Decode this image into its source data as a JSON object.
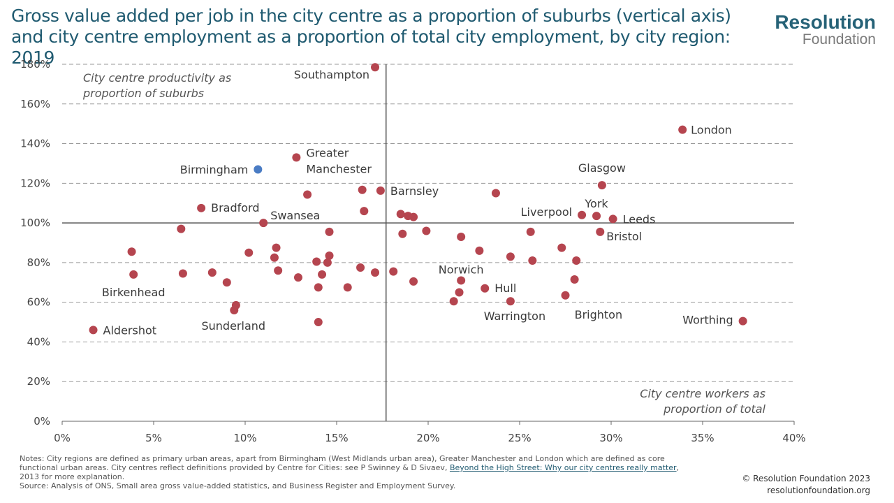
{
  "title": "Gross value added per job in the city centre as a proportion of suburbs (vertical axis) and city centre employment as a proportion of total city employment, by city region: 2019",
  "logo": {
    "line1": "Resolution",
    "line2": "Foundation"
  },
  "notes": {
    "line1_a": "Notes: City regions are defined as primary urban areas, apart from Birmingham (West Midlands urban area), Greater Manchester and London which are defined as core functional urban areas. City centres reflect definitions provided by Centre for Cities: see P Swinney & D Sivaev, ",
    "link": "Beyond the High Street: Why our city centres really matter",
    "line1_b": ", 2013 for more explanation.",
    "source": "Source: Analysis of ONS, Small area gross value-added statistics, and Business Register and Employment Survey."
  },
  "copyright": {
    "line1": "© Resolution Foundation 2023",
    "line2": "resolutionfoundation.org"
  },
  "colors": {
    "point": "#b5454f",
    "highlight": "#4a7cc4",
    "grid": "#9a9a9a",
    "axis": "#666666",
    "title": "#1f5a70"
  },
  "chart_data": {
    "type": "scatter",
    "xlim": [
      0,
      40
    ],
    "ylim": [
      0,
      180
    ],
    "x_ticks": [
      0,
      5,
      10,
      15,
      20,
      25,
      30,
      35,
      40
    ],
    "y_ticks": [
      0,
      20,
      40,
      60,
      80,
      100,
      120,
      140,
      160,
      180
    ],
    "x_tick_labels": [
      "0%",
      "5%",
      "10%",
      "15%",
      "20%",
      "25%",
      "30%",
      "35%",
      "40%"
    ],
    "y_tick_labels": [
      "0%",
      "20%",
      "40%",
      "60%",
      "80%",
      "100%",
      "120%",
      "140%",
      "160%",
      "180%"
    ],
    "grid": "horizontal dashed",
    "reference_lines": {
      "x": 17.7,
      "y": 100
    },
    "quadrant_labels": {
      "y_axis": [
        "City centre productivity as",
        "proportion of suburbs"
      ],
      "x_axis": [
        "City centre workers as",
        "proportion of total"
      ]
    },
    "points": [
      {
        "x": 17.1,
        "y": 178.5,
        "label": "Southampton",
        "anchor": "end",
        "dx": -8,
        "dy": 16
      },
      {
        "x": 33.9,
        "y": 147,
        "label": "London",
        "anchor": "start",
        "dx": 12,
        "dy": 6
      },
      {
        "x": 12.8,
        "y": 133,
        "label": "Greater",
        "label2": "Manchester",
        "anchor": "start",
        "dx": 14,
        "dy": -1
      },
      {
        "x": 10.7,
        "y": 127,
        "label": "Birmingham",
        "anchor": "end",
        "dx": -14,
        "dy": 6,
        "highlight": true
      },
      {
        "x": 29.5,
        "y": 119,
        "label": "Glasgow",
        "anchor": "middle",
        "dx": 0,
        "dy": -19
      },
      {
        "x": 16.4,
        "y": 116.7
      },
      {
        "x": 17.4,
        "y": 116.3,
        "label": "Barnsley",
        "anchor": "start",
        "dx": 14,
        "dy": 6
      },
      {
        "x": 13.4,
        "y": 114.3
      },
      {
        "x": 23.7,
        "y": 115
      },
      {
        "x": 7.6,
        "y": 107.5,
        "label": "Bradford",
        "anchor": "start",
        "dx": 14,
        "dy": 5
      },
      {
        "x": 16.5,
        "y": 106
      },
      {
        "x": 18.5,
        "y": 104.5
      },
      {
        "x": 18.9,
        "y": 103.5
      },
      {
        "x": 19.2,
        "y": 103
      },
      {
        "x": 28.4,
        "y": 104,
        "label": "Liverpool",
        "anchor": "end",
        "dx": -14,
        "dy": 1
      },
      {
        "x": 29.2,
        "y": 103.5,
        "label": "York",
        "anchor": "middle",
        "dx": 0,
        "dy": -12
      },
      {
        "x": 30.1,
        "y": 102,
        "label": "Leeds",
        "anchor": "start",
        "dx": 14,
        "dy": 6
      },
      {
        "x": 11.0,
        "y": 100,
        "label": "Swansea",
        "anchor": "start",
        "dx": 10,
        "dy": -5
      },
      {
        "x": 6.5,
        "y": 97
      },
      {
        "x": 14.6,
        "y": 95.5
      },
      {
        "x": 19.9,
        "y": 96
      },
      {
        "x": 25.6,
        "y": 95.5
      },
      {
        "x": 29.4,
        "y": 95.5,
        "label": "Bristol",
        "anchor": "start",
        "dx": 9,
        "dy": 12
      },
      {
        "x": 18.6,
        "y": 94.5
      },
      {
        "x": 21.8,
        "y": 93
      },
      {
        "x": 11.7,
        "y": 87.5
      },
      {
        "x": 3.8,
        "y": 85.5
      },
      {
        "x": 10.2,
        "y": 85
      },
      {
        "x": 22.8,
        "y": 86
      },
      {
        "x": 27.3,
        "y": 87.5
      },
      {
        "x": 14.6,
        "y": 83.5
      },
      {
        "x": 11.6,
        "y": 82.5
      },
      {
        "x": 24.5,
        "y": 83
      },
      {
        "x": 25.7,
        "y": 81
      },
      {
        "x": 28.1,
        "y": 81
      },
      {
        "x": 13.9,
        "y": 80.5
      },
      {
        "x": 14.5,
        "y": 80
      },
      {
        "x": 16.3,
        "y": 77.5
      },
      {
        "x": 11.8,
        "y": 76
      },
      {
        "x": 8.2,
        "y": 75
      },
      {
        "x": 17.1,
        "y": 75
      },
      {
        "x": 18.1,
        "y": 75.5
      },
      {
        "x": 3.9,
        "y": 74,
        "label": "Birkenhead",
        "anchor": "middle",
        "dx": 0,
        "dy": 31
      },
      {
        "x": 6.6,
        "y": 74.5
      },
      {
        "x": 14.2,
        "y": 74
      },
      {
        "x": 12.9,
        "y": 72.5
      },
      {
        "x": 28.0,
        "y": 71.5,
        "label": "Brighton",
        "anchor": "start",
        "dx": 0,
        "dy": 56
      },
      {
        "x": 19.2,
        "y": 70.5
      },
      {
        "x": 21.8,
        "y": 71,
        "label": "Norwich",
        "anchor": "middle",
        "dx": 0,
        "dy": -10
      },
      {
        "x": 9.0,
        "y": 70
      },
      {
        "x": 14.0,
        "y": 67.5
      },
      {
        "x": 15.6,
        "y": 67.5
      },
      {
        "x": 23.1,
        "y": 67,
        "label": "Hull",
        "anchor": "start",
        "dx": 14,
        "dy": 5
      },
      {
        "x": 21.7,
        "y": 65
      },
      {
        "x": 27.5,
        "y": 63.5
      },
      {
        "x": 21.4,
        "y": 60.5
      },
      {
        "x": 24.5,
        "y": 60.5,
        "label": "Warrington",
        "anchor": "middle",
        "dx": 6,
        "dy": 27
      },
      {
        "x": 9.5,
        "y": 58.5
      },
      {
        "x": 9.4,
        "y": 56,
        "label": "Sunderland",
        "anchor": "middle",
        "dx": -1,
        "dy": 28
      },
      {
        "x": 14.0,
        "y": 50
      },
      {
        "x": 37.2,
        "y": 50.5,
        "label": "Worthing",
        "anchor": "end",
        "dx": -14,
        "dy": 4
      },
      {
        "x": 1.7,
        "y": 46,
        "label": "Aldershot",
        "anchor": "start",
        "dx": 14,
        "dy": 6
      }
    ]
  }
}
